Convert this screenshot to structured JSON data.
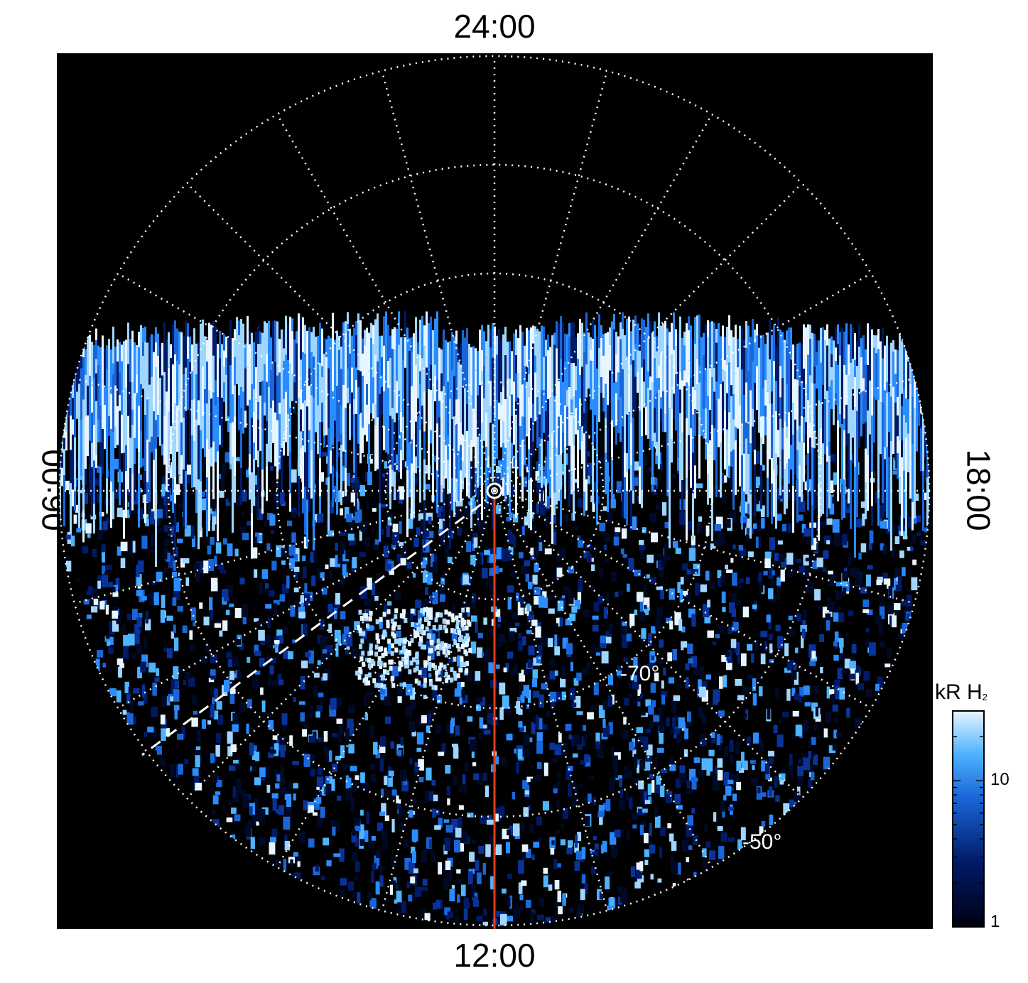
{
  "lt_labels": {
    "top": "24:00",
    "bottom": "12:00",
    "left": "06:00",
    "right": "18:00"
  },
  "latitude_labels": [
    "-70°",
    "-50°"
  ],
  "colorbar": {
    "title": "kR H",
    "title_sub": "2",
    "scale": "log",
    "range": [
      1,
      30
    ],
    "ticks": [
      "10",
      "1"
    ],
    "colors": [
      "#000010",
      "#001a66",
      "#1a66d9",
      "#4db3ff",
      "#e6f5ff"
    ]
  },
  "colors": {
    "background": "#000000",
    "grid": "#ffffff",
    "meridian_line": "#e0401c",
    "aurora_high": "#e6f5ff",
    "aurora_mid": "#1a80f2",
    "aurora_low": "#00154d"
  }
}
